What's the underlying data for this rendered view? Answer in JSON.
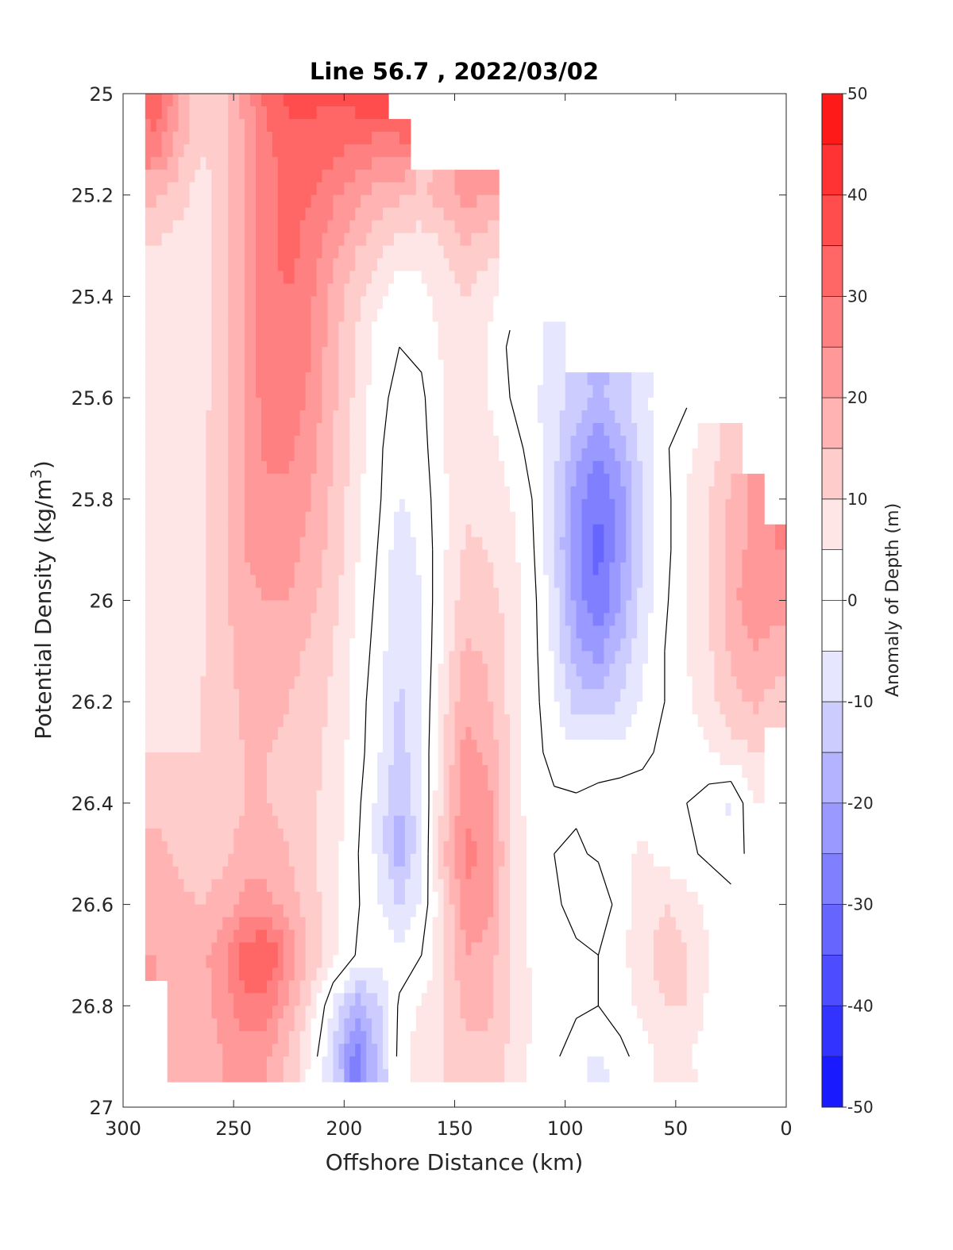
{
  "chart_data": {
    "type": "heatmap",
    "title": "Line 56.7 , 2022/03/02",
    "xlabel": "Offshore Distance (km)",
    "ylabel_main": "Potential Density (kg/m",
    "ylabel_sup": "3",
    "ylabel_close": ")",
    "colorbar_label": "Anomaly of Depth (m)",
    "xlim": [
      300,
      0
    ],
    "ylim": [
      25,
      27
    ],
    "x_reversed": true,
    "y_reversed": true,
    "x_ticks": [
      300,
      250,
      200,
      150,
      100,
      50,
      0
    ],
    "x_tick_labels": [
      "300",
      "250",
      "200",
      "150",
      "100",
      "50",
      "0"
    ],
    "y_ticks": [
      25,
      25.2,
      25.4,
      25.6,
      25.8,
      26,
      26.2,
      26.4,
      26.6,
      26.8,
      27
    ],
    "y_tick_labels": [
      "25",
      "25.2",
      "25.4",
      "25.6",
      "25.8",
      "26",
      "26.2",
      "26.4",
      "26.6",
      "26.8",
      "27"
    ],
    "colorbar_ticks": [
      50,
      40,
      30,
      20,
      10,
      0,
      -10,
      -20,
      -30,
      -40,
      -50
    ],
    "colorbar_tick_labels": [
      "50",
      "40",
      "30",
      "20",
      "10",
      "0",
      "-10",
      "-20",
      "-30",
      "-40",
      "-50"
    ],
    "clim": [
      -50,
      50
    ],
    "contour_step": 5,
    "colormap": [
      "#0000ff",
      "#1a1aff",
      "#3333ff",
      "#4d4dff",
      "#6666ff",
      "#8080ff",
      "#9999ff",
      "#b3b3ff",
      "#ccccff",
      "#e6e6ff",
      "#ffffff",
      "#ffffff",
      "#ffe6e6",
      "#ffcccc",
      "#ffb3b3",
      "#ff9999",
      "#ff8080",
      "#ff6666",
      "#ff4d4d",
      "#ff3333",
      "#ff1a1a",
      "#ff0000"
    ],
    "grid": false,
    "x": [
      285,
      275,
      265,
      255,
      245,
      235,
      225,
      215,
      205,
      195,
      185,
      175,
      165,
      155,
      145,
      135,
      125,
      115,
      105,
      95,
      85,
      75,
      65,
      55,
      45,
      35,
      25,
      15,
      5
    ],
    "y": [
      25.0,
      25.1,
      25.2,
      25.3,
      25.4,
      25.5,
      25.6,
      25.7,
      25.8,
      25.9,
      26.0,
      26.1,
      26.2,
      26.3,
      26.4,
      26.5,
      26.6,
      26.7,
      26.8,
      26.9
    ],
    "valid_x_max_by_row": [
      285,
      285,
      285,
      285,
      285,
      285,
      285,
      285,
      285,
      285,
      285,
      285,
      285,
      285,
      285,
      285,
      285,
      285,
      280,
      280
    ],
    "valid_x_min_by_row": [
      195,
      175,
      160,
      135,
      120,
      120,
      55,
      25,
      15,
      5,
      5,
      10,
      10,
      20,
      35,
      35,
      35,
      35,
      35,
      35
    ],
    "z": [
      [
        35,
        20,
        12,
        14,
        22,
        32,
        36,
        36,
        36,
        38,
        40,
        null,
        null,
        null,
        null,
        null,
        null,
        null,
        null,
        null,
        null,
        null,
        null,
        null,
        null,
        null,
        null,
        null,
        null
      ],
      [
        28,
        18,
        10,
        12,
        20,
        28,
        34,
        34,
        32,
        30,
        28,
        30,
        null,
        null,
        null,
        null,
        null,
        null,
        null,
        null,
        null,
        null,
        null,
        null,
        null,
        null,
        null,
        null,
        null
      ],
      [
        16,
        12,
        8,
        12,
        20,
        28,
        32,
        30,
        26,
        22,
        18,
        16,
        14,
        18,
        22,
        20,
        null,
        null,
        null,
        null,
        null,
        null,
        null,
        null,
        null,
        null,
        null,
        null,
        null
      ],
      [
        10,
        8,
        7,
        12,
        20,
        28,
        32,
        28,
        22,
        16,
        12,
        8,
        7,
        10,
        15,
        12,
        null,
        null,
        null,
        null,
        null,
        null,
        null,
        null,
        null,
        null,
        null,
        null,
        null
      ],
      [
        8,
        7,
        7,
        12,
        20,
        28,
        30,
        26,
        18,
        12,
        6,
        2,
        3,
        8,
        10,
        6,
        2,
        null,
        null,
        null,
        null,
        null,
        null,
        null,
        null,
        null,
        null,
        null,
        null
      ],
      [
        7,
        7,
        8,
        12,
        20,
        28,
        30,
        25,
        17,
        10,
        3,
        0,
        1,
        6,
        8,
        5,
        -1,
        -3,
        -6,
        null,
        null,
        null,
        null,
        null,
        null,
        null,
        null,
        null,
        null
      ],
      [
        7,
        7,
        8,
        13,
        20,
        28,
        28,
        24,
        16,
        9,
        2,
        -2,
        -1,
        5,
        7,
        5,
        0,
        -4,
        -8,
        -12,
        -16,
        -12,
        -6,
        -3,
        -1,
        null,
        null,
        null,
        null
      ],
      [
        6,
        7,
        8,
        14,
        20,
        26,
        26,
        22,
        15,
        8,
        1,
        -3,
        -2,
        5,
        8,
        7,
        3,
        -2,
        -8,
        -18,
        -25,
        -18,
        -8,
        -1,
        4,
        8,
        12,
        null,
        null
      ],
      [
        6,
        7,
        9,
        14,
        20,
        24,
        24,
        20,
        14,
        7,
        1,
        -5,
        -3,
        4,
        9,
        8,
        5,
        0,
        -10,
        -22,
        -30,
        -22,
        -10,
        -2,
        5,
        10,
        16,
        22,
        null
      ],
      [
        7,
        7,
        9,
        14,
        20,
        22,
        22,
        18,
        13,
        6,
        0,
        -8,
        -4,
        4,
        11,
        10,
        7,
        1,
        -10,
        -24,
        -32,
        -22,
        -10,
        -2,
        5,
        10,
        16,
        22,
        25
      ],
      [
        7,
        8,
        9,
        14,
        18,
        20,
        20,
        16,
        12,
        5,
        -1,
        -9,
        -5,
        5,
        13,
        12,
        8,
        2,
        -8,
        -22,
        -30,
        -20,
        -8,
        -1,
        5,
        10,
        18,
        24,
        22
      ],
      [
        8,
        8,
        9,
        13,
        17,
        18,
        17,
        14,
        10,
        4,
        -2,
        -10,
        -5,
        6,
        16,
        14,
        9,
        2,
        -6,
        -18,
        -22,
        -14,
        -6,
        0,
        5,
        9,
        16,
        20,
        18
      ],
      [
        8,
        8,
        10,
        13,
        16,
        16,
        15,
        13,
        9,
        3,
        -3,
        -11,
        -5,
        8,
        19,
        16,
        9,
        2,
        -4,
        -12,
        -14,
        -10,
        -4,
        0,
        4,
        8,
        13,
        16,
        13
      ],
      [
        10,
        10,
        10,
        13,
        15,
        15,
        14,
        12,
        8,
        3,
        -4,
        -13,
        -5,
        10,
        22,
        19,
        9,
        2,
        -2,
        -4,
        -3,
        -3,
        -1,
        1,
        2,
        5,
        8,
        10,
        null
      ],
      [
        14,
        13,
        12,
        13,
        15,
        15,
        14,
        11,
        8,
        2,
        -6,
        -16,
        -6,
        12,
        24,
        22,
        9,
        2,
        1,
        1,
        2,
        3,
        2,
        2,
        0,
        -3,
        -6,
        5,
        null
      ],
      [
        16,
        14,
        13,
        14,
        17,
        17,
        15,
        11,
        7,
        1,
        -6,
        -18,
        -6,
        14,
        26,
        24,
        10,
        3,
        0,
        -1,
        1,
        4,
        6,
        3,
        1,
        -1,
        -3,
        2,
        null
      ],
      [
        18,
        16,
        15,
        17,
        22,
        22,
        18,
        12,
        7,
        1,
        -4,
        -10,
        -4,
        10,
        24,
        22,
        10,
        3,
        1,
        -2,
        -5,
        3,
        7,
        10,
        7,
        4,
        2,
        null,
        null
      ],
      [
        20,
        18,
        18,
        24,
        34,
        36,
        24,
        14,
        6,
        0,
        -2,
        -3,
        0,
        9,
        20,
        18,
        10,
        4,
        2,
        1,
        0,
        4,
        8,
        13,
        10,
        5,
        2,
        null,
        null
      ],
      [
        null,
        17,
        18,
        22,
        28,
        28,
        18,
        8,
        -5,
        -18,
        -12,
        1,
        6,
        10,
        16,
        16,
        10,
        5,
        2,
        1,
        0,
        3,
        6,
        10,
        10,
        4,
        null,
        null,
        null
      ],
      [
        null,
        16,
        17,
        20,
        22,
        20,
        14,
        4,
        -10,
        -28,
        -14,
        2,
        8,
        10,
        14,
        14,
        9,
        4,
        1,
        -3,
        -6,
        -2,
        3,
        6,
        6,
        2,
        null,
        null,
        null
      ]
    ]
  }
}
